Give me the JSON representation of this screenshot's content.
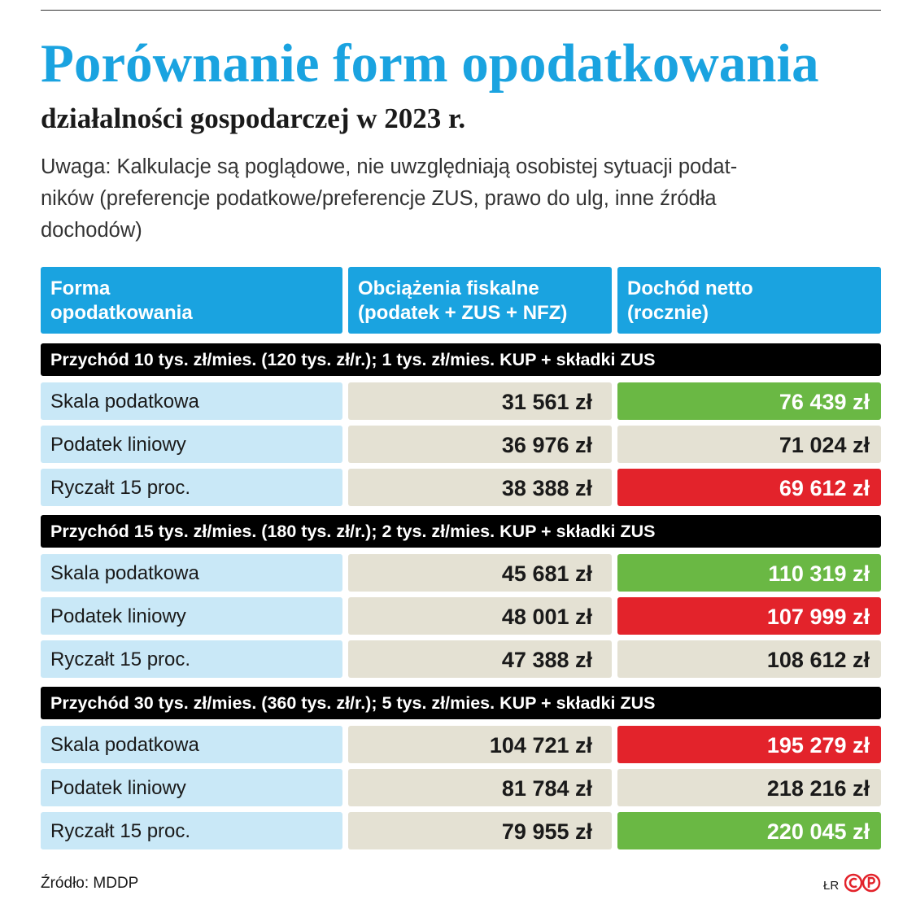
{
  "header": {
    "title": "Porównanie form opodatkowania",
    "subtitle": "działalności gospodarczej w 2023 r.",
    "note": [
      "Uwaga: Kalkulacje są poglądowe, nie uwzględniają osobistej sytuacji podat-",
      "ników (preferencje podatkowe/preferencje ZUS, prawo do ulg, inne źródła",
      "dochodów)"
    ]
  },
  "table": {
    "columns": [
      [
        "Forma",
        "opodatkowania"
      ],
      [
        "Obciążenia fiskalne",
        "(podatek + ZUS + NFZ)"
      ],
      [
        "Dochód netto",
        "(rocznie)"
      ]
    ],
    "sections": [
      {
        "heading": "Przychód 10 tys. zł/mies. (120 tys. zł/r.); 1 tys. zł/mies. KUP + składki ZUS",
        "rows": [
          {
            "label": "Skala podatkowa",
            "fiscal": "31 561 zł",
            "net": "76 439 zł",
            "net_color": "#6ab844"
          },
          {
            "label": "Podatek liniowy",
            "fiscal": "36 976 zł",
            "net": "71 024 zł"
          },
          {
            "label": "Ryczałt 15 proc.",
            "fiscal": "38 388 zł",
            "net": "69 612 zł",
            "net_color": "#e3232b"
          }
        ]
      },
      {
        "heading": "Przychód 15 tys. zł/mies. (180 tys. zł/r.); 2 tys. zł/mies. KUP + składki ZUS",
        "rows": [
          {
            "label": "Skala podatkowa",
            "fiscal": "45 681 zł",
            "net": "110 319 zł",
            "net_color": "#6ab844"
          },
          {
            "label": "Podatek liniowy",
            "fiscal": "48 001 zł",
            "net": "107 999 zł",
            "net_color": "#e3232b"
          },
          {
            "label": "Ryczałt 15 proc.",
            "fiscal": "47 388 zł",
            "net": "108 612 zł"
          }
        ]
      },
      {
        "heading": "Przychód 30 tys. zł/mies. (360 tys. zł/r.); 5 tys. zł/mies. KUP + składki ZUS",
        "rows": [
          {
            "label": "Skala podatkowa",
            "fiscal": "104 721 zł",
            "net": "195 279 zł",
            "net_color": "#e3232b"
          },
          {
            "label": "Podatek liniowy",
            "fiscal": "81 784 zł",
            "net": "218 216 zł"
          },
          {
            "label": "Ryczałt 15 proc.",
            "fiscal": "79 955 zł",
            "net": "220 045 zł",
            "net_color": "#6ab844"
          }
        ]
      }
    ]
  },
  "footer": {
    "source": "Źródło: MDDP",
    "author": "ŁR"
  }
}
